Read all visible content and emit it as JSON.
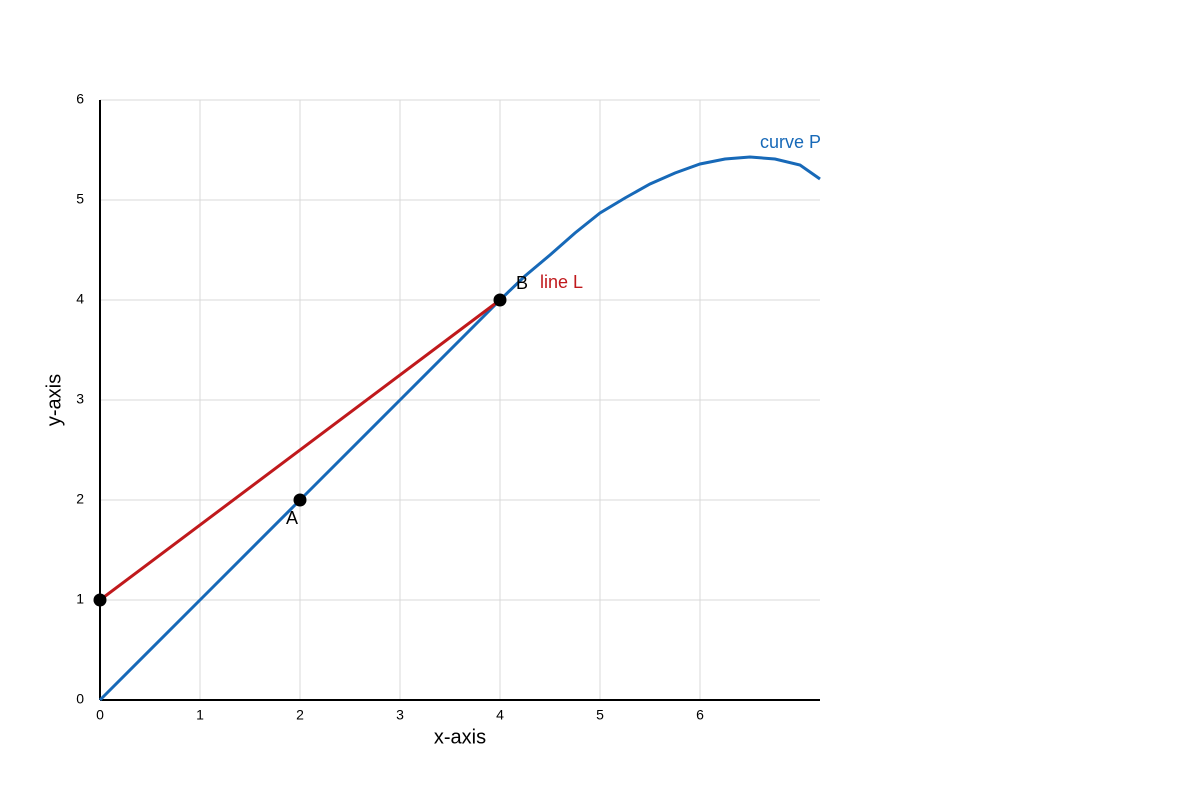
{
  "chart_data": {
    "type": "line",
    "x_label": "x-axis",
    "y_label": "y-axis",
    "xlim": [
      0,
      7.2
    ],
    "ylim": [
      0,
      6
    ],
    "xticks": [
      0,
      1,
      2,
      3,
      4,
      5,
      6
    ],
    "yticks": [
      0,
      1,
      2,
      3,
      4,
      5,
      6
    ],
    "grid": true,
    "series": [
      {
        "name": "curve P",
        "color": "#1769b8",
        "x": [
          0,
          1,
          2,
          3,
          4,
          4.25,
          4.5,
          4.75,
          5,
          5.25,
          5.5,
          5.75,
          6,
          6.25,
          6.5,
          6.75,
          7,
          7.2
        ],
        "values": [
          0,
          1,
          2,
          3,
          4,
          4.24,
          4.45,
          4.67,
          4.87,
          5.02,
          5.16,
          5.27,
          5.36,
          5.41,
          5.43,
          5.41,
          5.35,
          5.21
        ]
      },
      {
        "name": "line L",
        "color": "#c0191c",
        "x": [
          0,
          4
        ],
        "values": [
          1,
          4
        ]
      }
    ],
    "points": [
      {
        "x": 0,
        "y": 1
      },
      {
        "x": 2,
        "y": 2,
        "label": "A"
      },
      {
        "x": 4,
        "y": 4,
        "label": "B"
      }
    ]
  }
}
